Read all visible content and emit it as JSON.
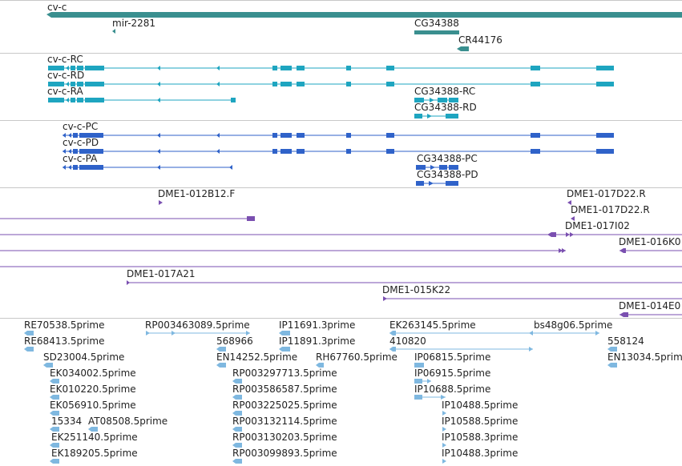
{
  "colors": {
    "gene": "#3a8f8f",
    "flybase_transcript": "#1ea5c0",
    "refseq_transcript": "#2f62c9",
    "bac_clone": "#7a4fb0",
    "est": "#7fb8e0",
    "divider": "#c8c8c8"
  },
  "icons": [
    "strand-arrow-icon"
  ],
  "tracks": {
    "genes": {
      "labels": [
        "cv-c",
        "mir-2281",
        "CG34388",
        "CR44176"
      ]
    },
    "flybase_transcripts": {
      "labels": [
        "cv-c-RC",
        "cv-c-RD",
        "cv-c-RA",
        "CG34388-RC",
        "CG34388-RD"
      ]
    },
    "refseq_transcripts": {
      "labels": [
        "cv-c-PC",
        "cv-c-PD",
        "cv-c-PA",
        "CG34388-PC",
        "CG34388-PD"
      ]
    },
    "bac_clones": {
      "labels": [
        "DME1-012B12.F",
        "DME1-017D22.R",
        "DME1-017D22.R",
        "DME1-017I02",
        "DME1-016K0",
        "DME1-017A21",
        "DME1-015K22",
        "DME1-014E0"
      ]
    },
    "ests": {
      "labels": [
        "RE70538.5prime",
        "RP003463089.5prime",
        "IP11691.3prime",
        "EK263145.5prime",
        "bs48g06.5prime",
        "RE68413.5prime",
        "568966",
        "IP11891.3prime",
        "410820",
        "558124",
        "SD23004.5prime",
        "EN14252.5prime",
        "RH67760.5prime",
        "IP06815.5prime",
        "EN13034.5prime",
        "EK034002.5prime",
        "RP003297713.5prime",
        "IP06915.5prime",
        "EK010220.5prime",
        "RP003586587.5prime",
        "IP10688.5prime",
        "EK056910.5prime",
        "RP003225025.5prime",
        "IP10488.5prime",
        "15334",
        "AT08508.5prime",
        "RP003132114.5prime",
        "IP10588.5prime",
        "EK251140.5prime",
        "RP003130203.5prime",
        "IP10588.3prime",
        "EK189205.5prime",
        "RP003099893.5prime",
        "IP10488.3prime"
      ]
    }
  }
}
